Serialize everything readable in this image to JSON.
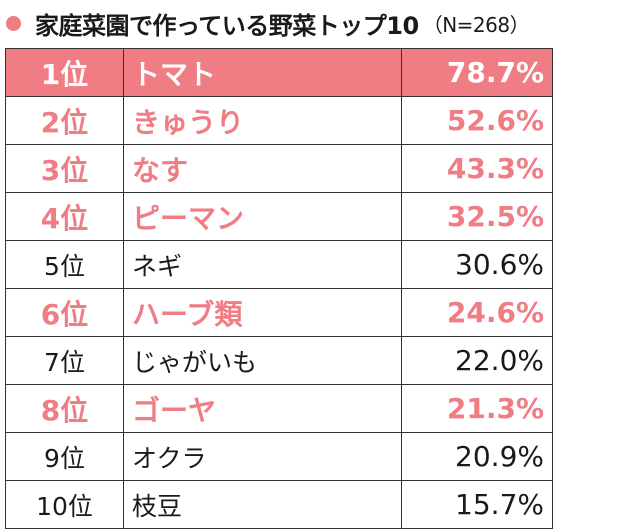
{
  "title": {
    "main": "家庭菜園で作っている野菜トップ10",
    "sample": "（N=268）",
    "accent_color": "#f07c84"
  },
  "chart_data": {
    "type": "table",
    "columns": [
      "rank",
      "vegetable",
      "percent"
    ],
    "unit": "%",
    "rows": [
      {
        "rank": "1位",
        "name": "トマト",
        "value": "78.7%",
        "percent": 78.7,
        "highlight": "filled"
      },
      {
        "rank": "2位",
        "name": "きゅうり",
        "value": "52.6%",
        "percent": 52.6,
        "highlight": "pink"
      },
      {
        "rank": "3位",
        "name": "なす",
        "value": "43.3%",
        "percent": 43.3,
        "highlight": "pink"
      },
      {
        "rank": "4位",
        "name": "ピーマン",
        "value": "32.5%",
        "percent": 32.5,
        "highlight": "pink"
      },
      {
        "rank": "5位",
        "name": "ネギ",
        "value": "30.6%",
        "percent": 30.6,
        "highlight": "none"
      },
      {
        "rank": "6位",
        "name": "ハーブ類",
        "value": "24.6%",
        "percent": 24.6,
        "highlight": "pink"
      },
      {
        "rank": "7位",
        "name": "じゃがいも",
        "value": "22.0%",
        "percent": 22.0,
        "highlight": "none"
      },
      {
        "rank": "8位",
        "name": "ゴーヤ",
        "value": "21.3%",
        "percent": 21.3,
        "highlight": "pink"
      },
      {
        "rank": "9位",
        "name": "オクラ",
        "value": "20.9%",
        "percent": 20.9,
        "highlight": "none"
      },
      {
        "rank": "10位",
        "name": "枝豆",
        "value": "15.7%",
        "percent": 15.7,
        "highlight": "none"
      }
    ]
  }
}
